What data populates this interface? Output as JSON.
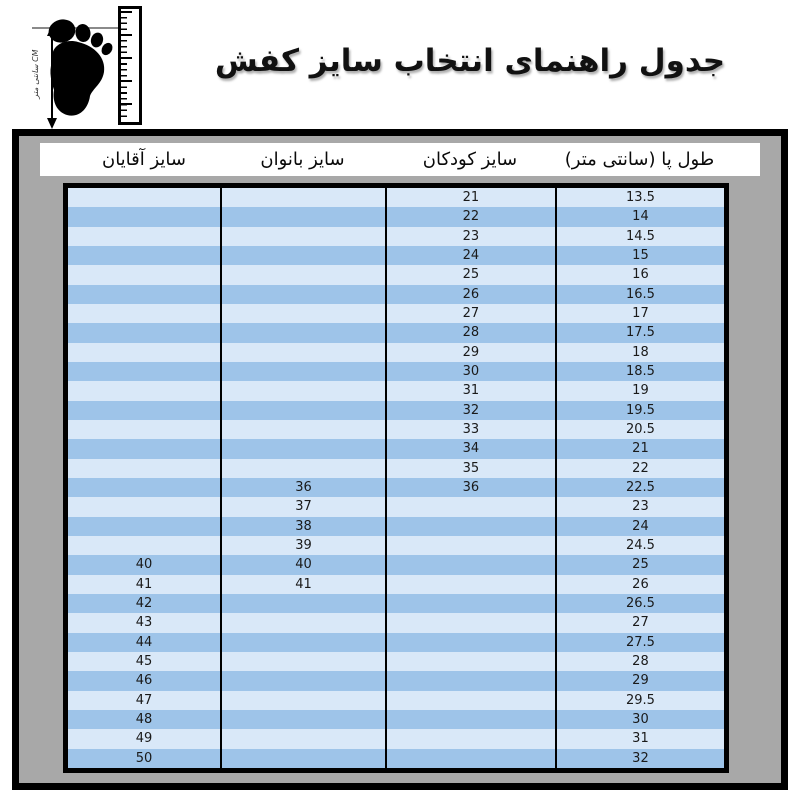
{
  "title": "جدول راهنمای انتخاب سایز کفش",
  "measure_icon": {
    "unit_label": "CM سانتی متر"
  },
  "size_table": {
    "columns": [
      {
        "key": "men",
        "label": "سایز آقایان"
      },
      {
        "key": "women",
        "label": "سایز بانوان"
      },
      {
        "key": "children",
        "label": "سایز کودکان"
      },
      {
        "key": "foot_cm",
        "label": "طول پا (سانتی متر)"
      }
    ],
    "rows": [
      {
        "foot_cm": "13.5",
        "children": "21",
        "women": "",
        "men": ""
      },
      {
        "foot_cm": "14",
        "children": "22",
        "women": "",
        "men": ""
      },
      {
        "foot_cm": "14.5",
        "children": "23",
        "women": "",
        "men": ""
      },
      {
        "foot_cm": "15",
        "children": "24",
        "women": "",
        "men": ""
      },
      {
        "foot_cm": "16",
        "children": "25",
        "women": "",
        "men": ""
      },
      {
        "foot_cm": "16.5",
        "children": "26",
        "women": "",
        "men": ""
      },
      {
        "foot_cm": "17",
        "children": "27",
        "women": "",
        "men": ""
      },
      {
        "foot_cm": "17.5",
        "children": "28",
        "women": "",
        "men": ""
      },
      {
        "foot_cm": "18",
        "children": "29",
        "women": "",
        "men": ""
      },
      {
        "foot_cm": "18.5",
        "children": "30",
        "women": "",
        "men": ""
      },
      {
        "foot_cm": "19",
        "children": "31",
        "women": "",
        "men": ""
      },
      {
        "foot_cm": "19.5",
        "children": "32",
        "women": "",
        "men": ""
      },
      {
        "foot_cm": "20.5",
        "children": "33",
        "women": "",
        "men": ""
      },
      {
        "foot_cm": "21",
        "children": "34",
        "women": "",
        "men": ""
      },
      {
        "foot_cm": "22",
        "children": "35",
        "women": "",
        "men": ""
      },
      {
        "foot_cm": "22.5",
        "children": "36",
        "women": "36",
        "men": ""
      },
      {
        "foot_cm": "23",
        "children": "",
        "women": "37",
        "men": ""
      },
      {
        "foot_cm": "24",
        "children": "",
        "women": "38",
        "men": ""
      },
      {
        "foot_cm": "24.5",
        "children": "",
        "women": "39",
        "men": ""
      },
      {
        "foot_cm": "25",
        "children": "",
        "women": "40",
        "men": "40"
      },
      {
        "foot_cm": "26",
        "children": "",
        "women": "41",
        "men": "41"
      },
      {
        "foot_cm": "26.5",
        "children": "",
        "women": "",
        "men": "42"
      },
      {
        "foot_cm": "27",
        "children": "",
        "women": "",
        "men": "43"
      },
      {
        "foot_cm": "27.5",
        "children": "",
        "women": "",
        "men": "44"
      },
      {
        "foot_cm": "28",
        "children": "",
        "women": "",
        "men": "45"
      },
      {
        "foot_cm": "29",
        "children": "",
        "women": "",
        "men": "46"
      },
      {
        "foot_cm": "29.5",
        "children": "",
        "women": "",
        "men": "47"
      },
      {
        "foot_cm": "30",
        "children": "",
        "women": "",
        "men": "48"
      },
      {
        "foot_cm": "31",
        "children": "",
        "women": "",
        "men": "49"
      },
      {
        "foot_cm": "32",
        "children": "",
        "women": "",
        "men": "50"
      }
    ]
  },
  "colors": {
    "row_light": "#d9e8f8",
    "row_dark": "#9ec4e9",
    "frame_gray": "#a8a8a8",
    "border_black": "#000000"
  }
}
